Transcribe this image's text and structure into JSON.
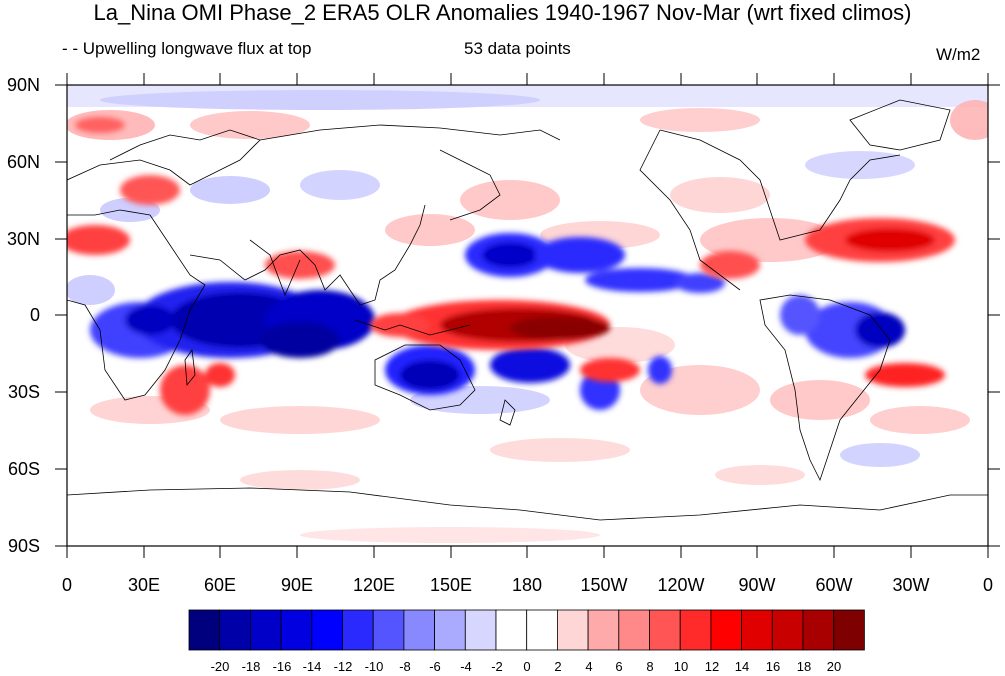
{
  "title": "La_Nina OMI Phase_2 ERA5 OLR Anomalies 1940-1967 Nov-Mar (wrt fixed climos)",
  "subtitle_left": "- - Upwelling longwave flux at top",
  "subtitle_center": "53 data points",
  "units": "W/m2",
  "lat_labels": [
    "90N",
    "60N",
    "30N",
    "0",
    "30S",
    "60S",
    "90S"
  ],
  "lon_labels": [
    "0",
    "30E",
    "60E",
    "90E",
    "120E",
    "150E",
    "180",
    "150W",
    "120W",
    "90W",
    "60W",
    "30W",
    "0"
  ],
  "colorbar": {
    "labels": [
      "-20",
      "-18",
      "-16",
      "-14",
      "-12",
      "-10",
      "-8",
      "-6",
      "-4",
      "-2",
      "0",
      "2",
      "4",
      "6",
      "8",
      "10",
      "12",
      "14",
      "16",
      "18",
      "20"
    ],
    "colors": [
      "#00007f",
      "#0000a8",
      "#0000c8",
      "#0000e0",
      "#0000ff",
      "#2a2aff",
      "#5555ff",
      "#8888ff",
      "#aaaaff",
      "#d6d6ff",
      "#ffffff",
      "#ffffff",
      "#ffd6d6",
      "#ffaaaa",
      "#ff8888",
      "#ff5555",
      "#ff2a2a",
      "#ff0000",
      "#e00000",
      "#c80000",
      "#a80000",
      "#7f0000"
    ]
  }
}
